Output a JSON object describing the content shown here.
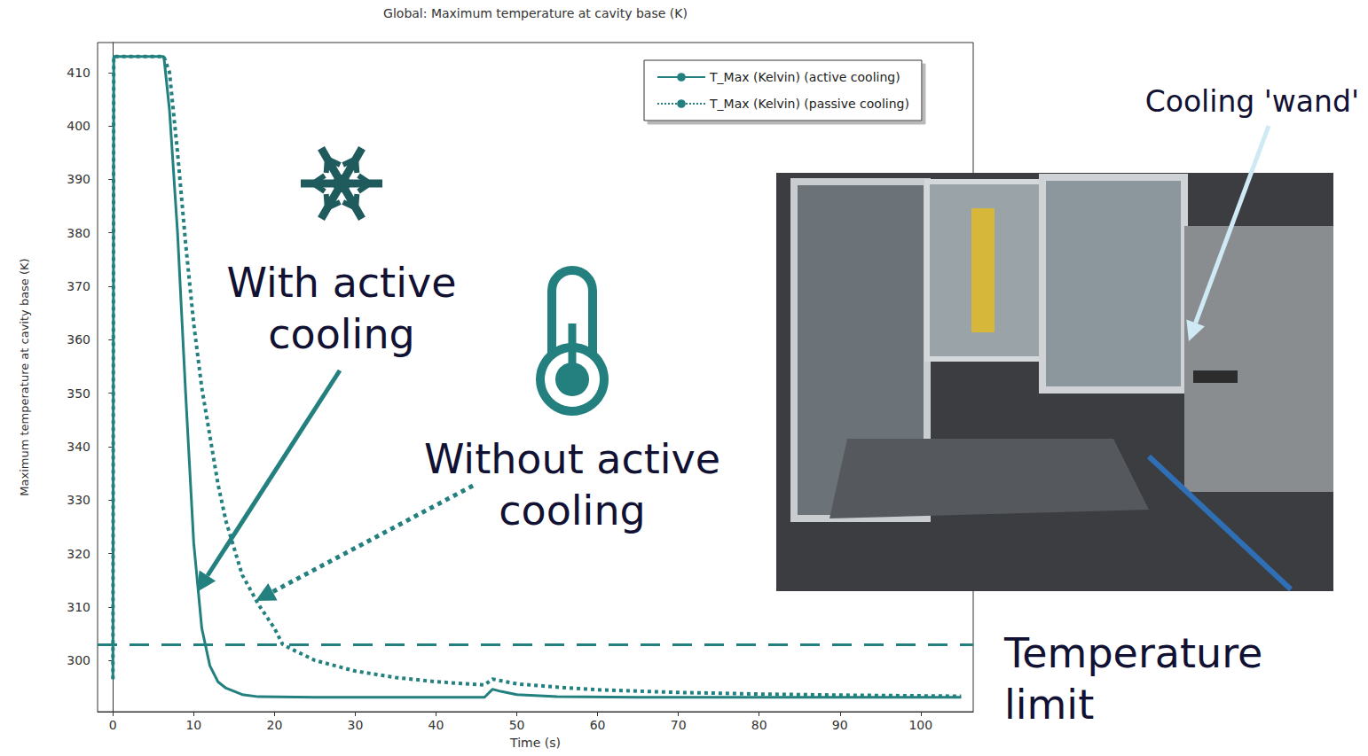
{
  "chart_data": {
    "type": "line",
    "title": "Global: Maximum temperature at cavity base (K)",
    "x_label": "Time (s)",
    "y_label": "Maximum temperature at cavity base (K)",
    "xlim": [
      -1.9,
      106.5
    ],
    "ylim": [
      290.4,
      415.6
    ],
    "xticks": [
      0,
      10,
      20,
      30,
      40,
      50,
      60,
      70,
      80,
      90,
      100
    ],
    "yticks": [
      300,
      310,
      320,
      330,
      340,
      350,
      360,
      370,
      380,
      390,
      400,
      410
    ],
    "grid": false,
    "legend": "upper right",
    "marker": "none",
    "series": [
      {
        "name": "T_Max (Kelvin) (active cooling)",
        "color": "#23807f",
        "line_style": "solid",
        "x": [
          0,
          0.1,
          6.3,
          7,
          8,
          9,
          10,
          11,
          12,
          13,
          14,
          16,
          18,
          25,
          35,
          46,
          47,
          48,
          50,
          55,
          65,
          80,
          95,
          105
        ],
        "values": [
          296.5,
          413,
          413,
          403,
          380,
          350,
          322,
          306,
          299,
          296,
          294.8,
          293.6,
          293.2,
          293.1,
          293.1,
          293.1,
          294.6,
          294.2,
          293.6,
          293.2,
          293.1,
          293.1,
          293.1,
          293.1
        ]
      },
      {
        "name": "T_Max (Kelvin) (passive cooling)",
        "color": "#23807f",
        "line_style": "dotted",
        "x": [
          0,
          0.1,
          6.3,
          7,
          8,
          9,
          10,
          11,
          12,
          13,
          14,
          16,
          18,
          20,
          21,
          22,
          25,
          30,
          35,
          40,
          46,
          47,
          48,
          50,
          55,
          60,
          70,
          80,
          90,
          105
        ],
        "values": [
          296.5,
          413,
          413,
          410,
          395,
          378,
          363,
          351,
          342,
          333,
          326,
          316,
          310.5,
          306,
          303,
          302.2,
          300,
          298,
          296.8,
          296,
          295.4,
          296.5,
          296.2,
          295.6,
          295,
          294.5,
          294,
          293.7,
          293.5,
          293.3
        ]
      }
    ],
    "threshold": {
      "label": "Temperature limit",
      "value": 303
    },
    "annotations": [
      "With active cooling",
      "Without active cooling",
      "Cooling 'wand'"
    ]
  }
}
